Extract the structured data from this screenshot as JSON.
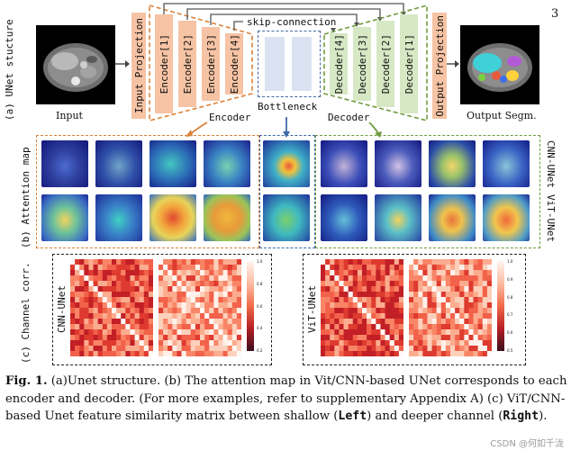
{
  "page_number": "3",
  "panel_a": {
    "row_label": "(a) UNet stucture",
    "input_label": "Input",
    "input_projection": "Input Projection",
    "encoders": [
      "Encoder[1]",
      "Encoder[2]",
      "Encoder[3]",
      "Encoder[4]"
    ],
    "skip_label": "skip-connection",
    "decoders": [
      "Decoder[4]",
      "Decoder[3]",
      "Decoder[2]",
      "Decoder[1]"
    ],
    "output_projection": "Output Projection",
    "output_label": "Output Segm.",
    "encoder_label": "Encoder",
    "bottleneck_label": "Bottleneck",
    "decoder_label": "Decoder",
    "colors": {
      "encoder": "#f6c3a4",
      "decoder": "#d6e8c4",
      "bottleneck": "#dbe3f3",
      "encoder_box": "#d9823a",
      "bottleneck_box": "#3e6aa8",
      "decoder_box": "#6f9a3d"
    }
  },
  "panel_b": {
    "row_label": "(b) Attention map",
    "top_right_label": "CNN-UNet",
    "bottom_right_label": "ViT-UNet"
  },
  "panel_c": {
    "row_label": "(c) Channel corr.",
    "left_label": "CNN-UNet",
    "right_label": "ViT-UNet",
    "left_ticks": [
      "1.0",
      "0.8",
      "0.6",
      "0.4",
      "0.2"
    ],
    "right_ticks": [
      "1.0",
      "0.9",
      "0.8",
      "0.7",
      "0.6",
      "0.5"
    ]
  },
  "caption": {
    "fig": "Fig. 1.",
    "text1": " (a)Unet structure. (b) The attention map in Vit/CNN-based UNet corresponds to each encoder and decoder. (For more examples, refer to supplementary Appendix A) (c) ViT/CNN-based Unet feature similarity matrix between shallow (",
    "left": "Left",
    "text2": ") and deeper channel (",
    "right": "Right",
    "text3": ")."
  },
  "watermark": "CSDN @何如千泷"
}
